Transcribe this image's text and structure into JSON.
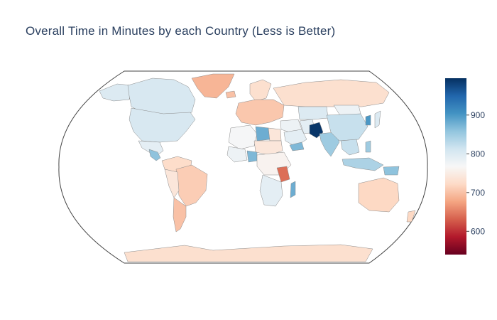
{
  "title": "Overall Time in Minutes by each Country (Less is Better)",
  "colorscale": {
    "name": "RdBu",
    "stops": [
      "#67001f",
      "#b2182b",
      "#d6604d",
      "#f4a582",
      "#fddbc7",
      "#f7f7f7",
      "#d1e5f0",
      "#92c5de",
      "#4393c3",
      "#2166ac",
      "#053061"
    ],
    "min": 540,
    "max": 995,
    "ticks": [
      {
        "value": 600,
        "label": "600"
      },
      {
        "value": 700,
        "label": "700"
      },
      {
        "value": 800,
        "label": "800"
      },
      {
        "value": 900,
        "label": "900"
      }
    ]
  },
  "regions": {
    "greenland": 690,
    "canada": 805,
    "usa": 805,
    "alaska": 800,
    "mexico": 790,
    "central_america": 860,
    "south_america_north": 725,
    "brazil": 710,
    "andes": 740,
    "argentina": 700,
    "iceland": 700,
    "europe": 705,
    "scandinavia": 730,
    "russia": 730,
    "north_africa_west": 770,
    "libya": 880,
    "egypt": 740,
    "west_africa": 780,
    "nigeria": 870,
    "sahel": 740,
    "east_africa": 760,
    "tanzania": 640,
    "southern_africa": 790,
    "madagascar": 880,
    "middle_east": 780,
    "saudi": 790,
    "yemen": 870,
    "iran": 790,
    "central_asia": 800,
    "pakistan": 990,
    "india": 850,
    "china": 820,
    "mongolia": 780,
    "korea": 900,
    "japan": 800,
    "southeast_asia": 820,
    "indonesia": 840,
    "philippines": 850,
    "australia": 720,
    "new_zealand": 720,
    "antarctica": 730,
    "papua": 860
  }
}
